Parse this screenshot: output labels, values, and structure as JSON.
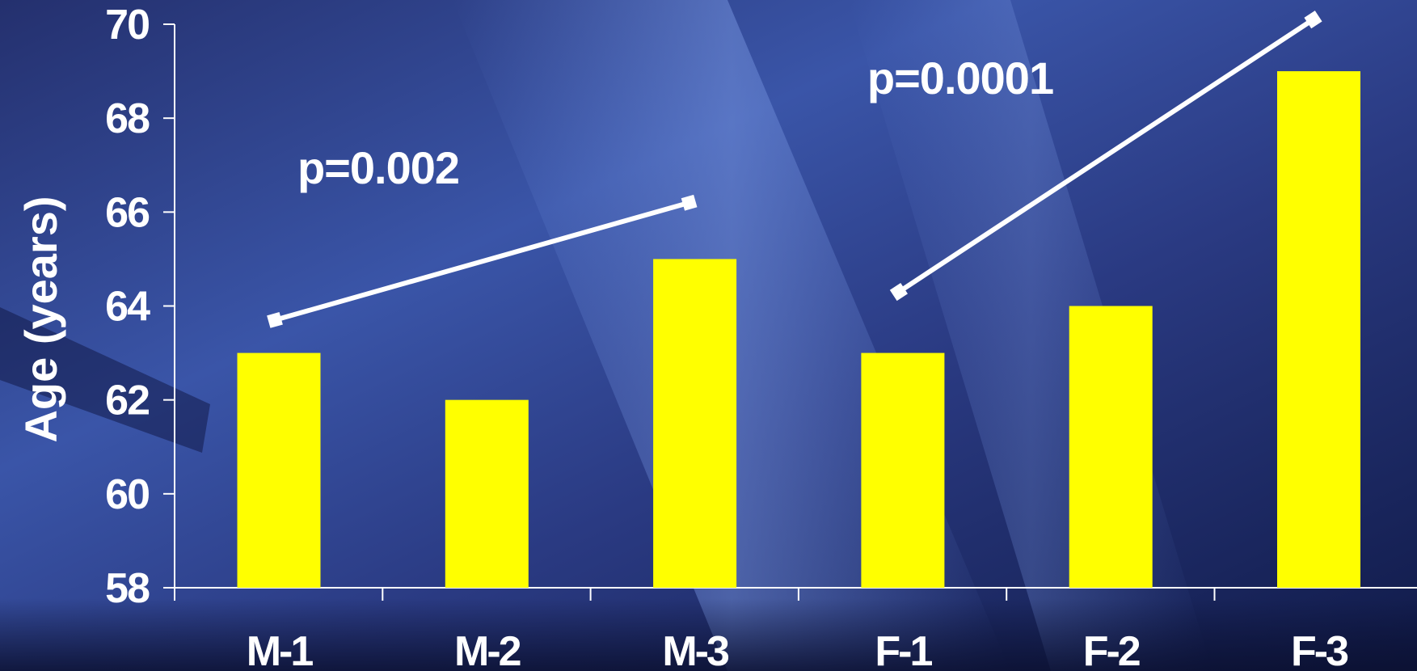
{
  "chart_data": {
    "type": "bar",
    "title": "",
    "xlabel": "",
    "ylabel": "Age (years)",
    "categories": [
      "M-1",
      "M-2",
      "M-3",
      "F-1",
      "F-2",
      "F-3"
    ],
    "values": [
      63,
      62,
      65,
      63,
      64,
      69
    ],
    "ylim": [
      58,
      70
    ],
    "yticks": [
      58,
      60,
      62,
      64,
      66,
      68,
      70
    ],
    "grid": false,
    "legend": "none",
    "bar_color": "#ffff00",
    "annotations": [
      {
        "label": "p=0.002",
        "from_category": "M-1",
        "to_category": "M-3",
        "from_value": 63.7,
        "to_value": 66.2
      },
      {
        "label": "p=0.0001",
        "from_category": "F-1",
        "to_category": "F-3",
        "from_value": 64.3,
        "to_value": 70.1
      }
    ]
  },
  "colors": {
    "background": "#1c2a66",
    "axis": "#ffffff",
    "text": "#ffffff",
    "bar": "#ffff00"
  }
}
